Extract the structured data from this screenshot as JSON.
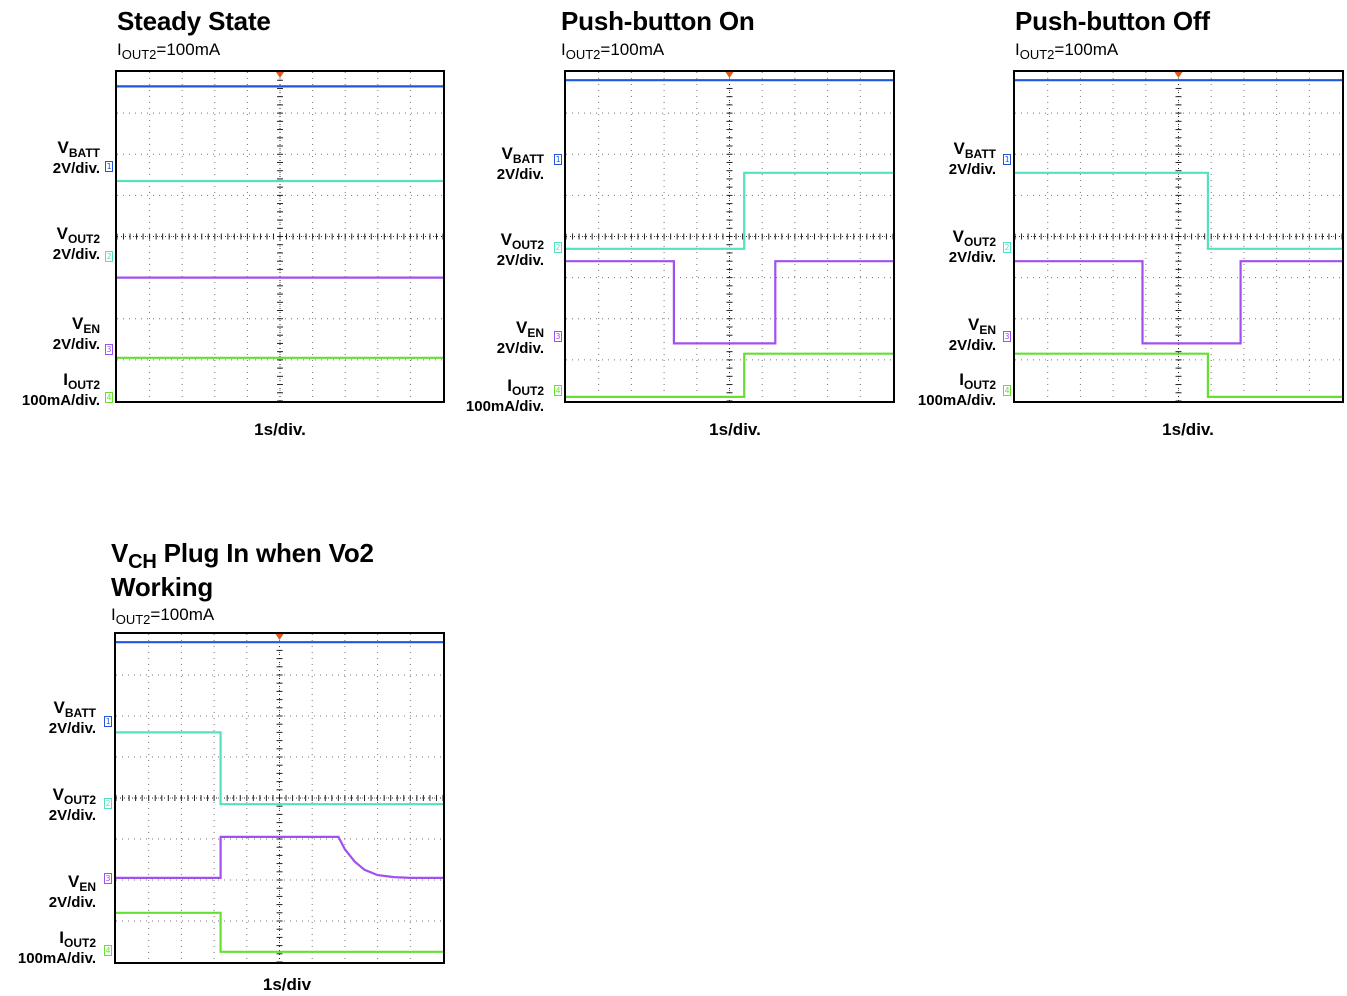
{
  "colors": {
    "ch1": "#2255dd",
    "ch2": "#55e0c0",
    "ch3": "#a050f0",
    "ch4": "#66e030",
    "trigger": "#e05a20"
  },
  "channel_labels": [
    {
      "sym": "V",
      "sub": "BATT",
      "scale": "2V/div."
    },
    {
      "sym": "V",
      "sub": "OUT2",
      "scale": "2V/div."
    },
    {
      "sym": "V",
      "sub": "EN",
      "scale": "2V/div."
    },
    {
      "sym": "I",
      "sub": "OUT2",
      "scale": "100mA/div."
    }
  ],
  "panels": [
    {
      "title": "Steady State",
      "condition": {
        "sym": "I",
        "sub": "OUT2",
        "value": "=100mA"
      },
      "xlabel": "1s/div."
    },
    {
      "title": "Push-button On",
      "condition": {
        "sym": "I",
        "sub": "OUT2",
        "value": "=100mA"
      },
      "xlabel": "1s/div."
    },
    {
      "title": "Push-button Off",
      "condition": {
        "sym": "I",
        "sub": "OUT2",
        "value": "=100mA"
      },
      "xlabel": "1s/div."
    },
    {
      "title_prefix": "V",
      "title_sub": "CH",
      "title_line1": " Plug In when Vo2",
      "title_line2": "Working",
      "condition": {
        "sym": "I",
        "sub": "OUT2",
        "value": "=100mA"
      },
      "xlabel": "1s/div"
    }
  ],
  "chart_data": [
    {
      "type": "line",
      "title": "Steady State",
      "xlabel": "1s/div.",
      "x_unit": "div",
      "xlim": [
        0,
        10
      ],
      "ylim": [
        0,
        8
      ],
      "grid": true,
      "series": [
        {
          "name": "VBATT",
          "x": [
            0,
            10
          ],
          "y": [
            7.65,
            7.65
          ]
        },
        {
          "name": "VOUT2",
          "x": [
            0,
            10
          ],
          "y": [
            5.35,
            5.35
          ]
        },
        {
          "name": "VEN",
          "x": [
            0,
            10
          ],
          "y": [
            3.0,
            3.0
          ]
        },
        {
          "name": "IOUT2",
          "x": [
            0,
            10
          ],
          "y": [
            1.05,
            1.05
          ]
        }
      ]
    },
    {
      "type": "line",
      "title": "Push-button On",
      "xlabel": "1s/div.",
      "x_unit": "div",
      "xlim": [
        0,
        10
      ],
      "ylim": [
        0,
        8
      ],
      "grid": true,
      "series": [
        {
          "name": "VBATT",
          "x": [
            0,
            10
          ],
          "y": [
            7.8,
            7.8
          ]
        },
        {
          "name": "VOUT2",
          "x": [
            0,
            5.45,
            5.45,
            10
          ],
          "y": [
            3.7,
            3.7,
            5.55,
            5.55
          ]
        },
        {
          "name": "VEN",
          "x": [
            0,
            3.3,
            3.3,
            6.4,
            6.4,
            10
          ],
          "y": [
            3.4,
            3.4,
            1.4,
            1.4,
            3.4,
            3.4
          ]
        },
        {
          "name": "IOUT2",
          "x": [
            0,
            5.45,
            5.45,
            10
          ],
          "y": [
            0.1,
            0.1,
            1.15,
            1.15
          ]
        }
      ]
    },
    {
      "type": "line",
      "title": "Push-button Off",
      "xlabel": "1s/div.",
      "x_unit": "div",
      "xlim": [
        0,
        10
      ],
      "ylim": [
        0,
        8
      ],
      "grid": true,
      "series": [
        {
          "name": "VBATT",
          "x": [
            0,
            10
          ],
          "y": [
            7.8,
            7.8
          ]
        },
        {
          "name": "VOUT2",
          "x": [
            0,
            5.9,
            5.9,
            10
          ],
          "y": [
            5.55,
            5.55,
            3.7,
            3.7
          ]
        },
        {
          "name": "VEN",
          "x": [
            0,
            3.9,
            3.9,
            6.9,
            6.9,
            10
          ],
          "y": [
            3.4,
            3.4,
            1.4,
            1.4,
            3.4,
            3.4
          ]
        },
        {
          "name": "IOUT2",
          "x": [
            0,
            5.9,
            5.9,
            10
          ],
          "y": [
            1.15,
            1.15,
            0.1,
            0.1
          ]
        }
      ]
    },
    {
      "type": "line",
      "title": "VCH Plug In when Vo2 Working",
      "xlabel": "1s/div",
      "x_unit": "div",
      "xlim": [
        0,
        10
      ],
      "ylim": [
        0,
        8
      ],
      "grid": true,
      "series": [
        {
          "name": "VBATT",
          "x": [
            0,
            10
          ],
          "y": [
            7.8,
            7.8
          ]
        },
        {
          "name": "VOUT2",
          "x": [
            0,
            3.2,
            3.2,
            10
          ],
          "y": [
            5.6,
            5.6,
            3.85,
            3.85
          ]
        },
        {
          "name": "VEN",
          "x": [
            0,
            3.2,
            3.2,
            6.8,
            7.0,
            7.3,
            7.6,
            8.0,
            8.5,
            9.0,
            10
          ],
          "y": [
            2.05,
            2.05,
            3.05,
            3.05,
            2.75,
            2.45,
            2.25,
            2.12,
            2.07,
            2.05,
            2.05
          ]
        },
        {
          "name": "IOUT2",
          "x": [
            0,
            3.2,
            3.2,
            10
          ],
          "y": [
            1.2,
            1.2,
            0.25,
            0.25
          ]
        }
      ]
    }
  ]
}
